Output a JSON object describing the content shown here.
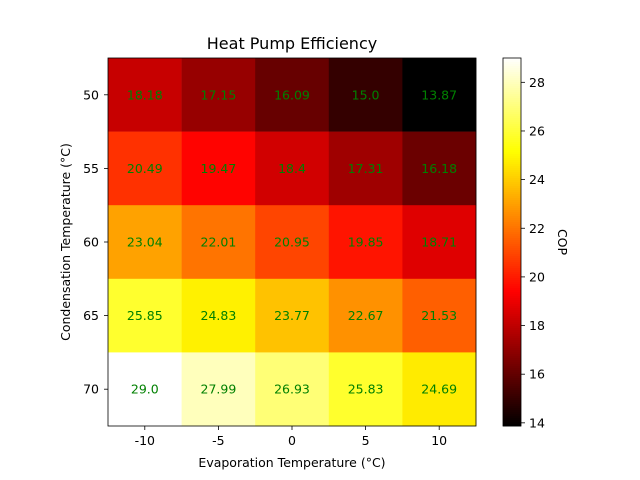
{
  "chart_data": {
    "type": "heatmap",
    "title": "Heat Pump Efficiency",
    "xlabel": "Evaporation Temperature (°C)",
    "ylabel": "Condensation Temperature (°C)",
    "colorbar_label": "COP",
    "colormap": "hot",
    "x_categories": [
      "-10",
      "-5",
      "0",
      "5",
      "10"
    ],
    "y_categories": [
      "50",
      "55",
      "60",
      "65",
      "70"
    ],
    "values": [
      [
        18.18,
        17.15,
        16.09,
        15.0,
        13.87
      ],
      [
        20.49,
        19.47,
        18.4,
        17.31,
        16.18
      ],
      [
        23.04,
        22.01,
        20.95,
        19.85,
        18.71
      ],
      [
        25.85,
        24.83,
        23.77,
        22.67,
        21.53
      ],
      [
        29.0,
        27.99,
        26.93,
        25.83,
        24.69
      ]
    ],
    "value_labels": [
      [
        "18.18",
        "17.15",
        "16.09",
        "15.0",
        "13.87"
      ],
      [
        "20.49",
        "19.47",
        "18.4",
        "17.31",
        "16.18"
      ],
      [
        "23.04",
        "22.01",
        "20.95",
        "19.85",
        "18.71"
      ],
      [
        "25.85",
        "24.83",
        "23.77",
        "22.67",
        "21.53"
      ],
      [
        "29.0",
        "27.99",
        "26.93",
        "25.83",
        "24.69"
      ]
    ],
    "label_color": "#008000",
    "vmin": 13.87,
    "vmax": 29.0,
    "colorbar_ticks": [
      "14",
      "16",
      "18",
      "20",
      "22",
      "24",
      "26",
      "28"
    ]
  }
}
